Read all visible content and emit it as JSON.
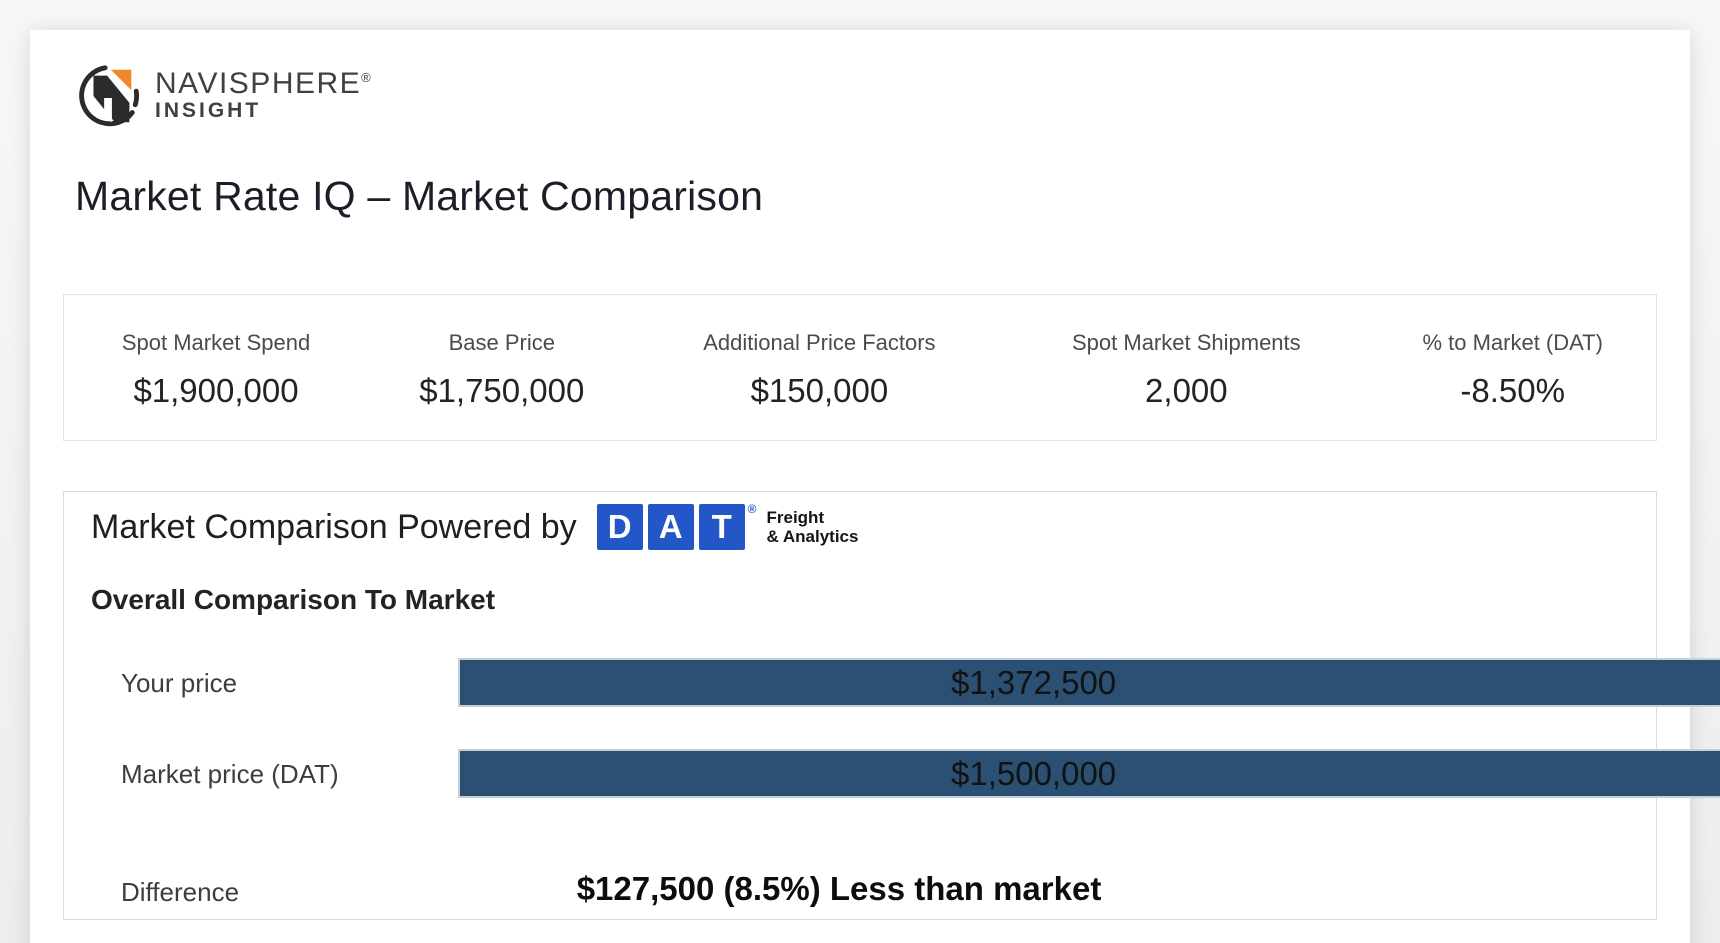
{
  "brand": {
    "name": "NAVISPHERE",
    "registered": "®",
    "subname": "INSIGHT"
  },
  "page_title": "Market Rate IQ – Market Comparison",
  "stats": {
    "items": [
      {
        "label": "Spot Market Spend",
        "value": "$1,900,000"
      },
      {
        "label": "Base Price",
        "value": "$1,750,000"
      },
      {
        "label": "Additional Price Factors",
        "value": "$150,000"
      },
      {
        "label": "Spot Market Shipments",
        "value": "2,000"
      },
      {
        "label": "% to Market (DAT)",
        "value": "-8.50%"
      }
    ]
  },
  "comparison_card": {
    "header_prefix": "Market Comparison Powered by",
    "dat_logo": {
      "letters": {
        "d": "D",
        "a": "A",
        "t": "T"
      },
      "registered": "®",
      "tagline_line1": "Freight",
      "tagline_line2": "& Analytics"
    },
    "section_title": "Overall Comparison To Market",
    "rows": [
      {
        "label": "Your price",
        "value": "$1,372,500",
        "bar_width_pct": 98.2
      },
      {
        "label": "Market price (DAT)",
        "value": "$1,500,000",
        "bar_width_pct": 100
      }
    ],
    "difference": {
      "label": "Difference",
      "value": "$127,500 (8.5%) Less than market"
    }
  },
  "chart_data": {
    "type": "bar",
    "orientation": "horizontal",
    "title": "Overall Comparison To Market",
    "categories": [
      "Your price",
      "Market price (DAT)"
    ],
    "values": [
      1372500,
      1500000
    ],
    "value_labels": [
      "$1,372,500",
      "$1,500,000"
    ],
    "annotation": "$127,500 (8.5%) Less than market",
    "bar_color": "#2b5073"
  },
  "colors": {
    "bar": "#2b5073",
    "dat_blue": "#2356c6",
    "brand_orange": "#f0872a",
    "brand_dark": "#2b2b2b"
  }
}
